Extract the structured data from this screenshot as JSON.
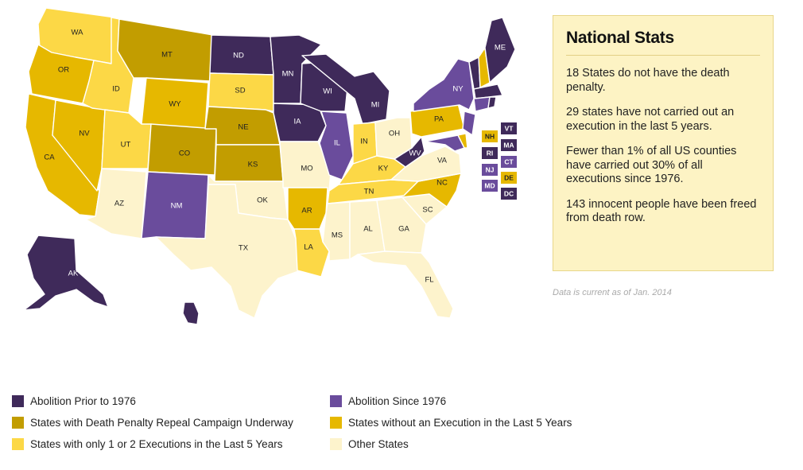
{
  "colors": {
    "abolition_prior": "#3f2a5a",
    "abolition_since": "#6a4c9c",
    "repeal_campaign": "#c29d00",
    "no_execution_5yrs": "#e6b800",
    "one_two_executions": "#fcd846",
    "other": "#fdf3cc",
    "box_olive": "#c9a21b",
    "box_purple": "#4a3171"
  },
  "states": [
    {
      "abbr": "WA",
      "category": "one_two_executions"
    },
    {
      "abbr": "OR",
      "category": "no_execution_5yrs"
    },
    {
      "abbr": "CA",
      "category": "no_execution_5yrs"
    },
    {
      "abbr": "NV",
      "category": "no_execution_5yrs"
    },
    {
      "abbr": "ID",
      "category": "one_two_executions"
    },
    {
      "abbr": "MT",
      "category": "repeal_campaign"
    },
    {
      "abbr": "WY",
      "category": "no_execution_5yrs"
    },
    {
      "abbr": "UT",
      "category": "one_two_executions"
    },
    {
      "abbr": "CO",
      "category": "repeal_campaign"
    },
    {
      "abbr": "AZ",
      "category": "other"
    },
    {
      "abbr": "NM",
      "category": "abolition_since"
    },
    {
      "abbr": "ND",
      "category": "abolition_prior"
    },
    {
      "abbr": "SD",
      "category": "one_two_executions"
    },
    {
      "abbr": "NE",
      "category": "repeal_campaign"
    },
    {
      "abbr": "KS",
      "category": "repeal_campaign"
    },
    {
      "abbr": "OK",
      "category": "other"
    },
    {
      "abbr": "TX",
      "category": "other"
    },
    {
      "abbr": "MN",
      "category": "abolition_prior"
    },
    {
      "abbr": "IA",
      "category": "abolition_prior"
    },
    {
      "abbr": "MO",
      "category": "other"
    },
    {
      "abbr": "AR",
      "category": "no_execution_5yrs"
    },
    {
      "abbr": "LA",
      "category": "one_two_executions"
    },
    {
      "abbr": "WI",
      "category": "abolition_prior"
    },
    {
      "abbr": "IL",
      "category": "abolition_since"
    },
    {
      "abbr": "MI",
      "category": "abolition_prior"
    },
    {
      "abbr": "IN",
      "category": "one_two_executions"
    },
    {
      "abbr": "OH",
      "category": "other"
    },
    {
      "abbr": "KY",
      "category": "one_two_executions"
    },
    {
      "abbr": "TN",
      "category": "one_two_executions"
    },
    {
      "abbr": "MS",
      "category": "other"
    },
    {
      "abbr": "AL",
      "category": "other"
    },
    {
      "abbr": "GA",
      "category": "other"
    },
    {
      "abbr": "FL",
      "category": "other"
    },
    {
      "abbr": "SC",
      "category": "other"
    },
    {
      "abbr": "NC",
      "category": "no_execution_5yrs"
    },
    {
      "abbr": "VA",
      "category": "other"
    },
    {
      "abbr": "WV",
      "category": "abolition_prior"
    },
    {
      "abbr": "PA",
      "category": "no_execution_5yrs"
    },
    {
      "abbr": "NY",
      "category": "abolition_since"
    },
    {
      "abbr": "ME",
      "category": "abolition_prior"
    },
    {
      "abbr": "AK",
      "category": "abolition_prior"
    },
    {
      "abbr": "HI",
      "category": "abolition_prior"
    }
  ],
  "small_state_boxes": [
    {
      "abbr": "NH",
      "category": "no_execution_5yrs"
    },
    {
      "abbr": "VT",
      "category": "abolition_prior"
    },
    {
      "abbr": "MA",
      "category": "abolition_prior"
    },
    {
      "abbr": "RI",
      "category": "abolition_prior"
    },
    {
      "abbr": "CT",
      "category": "abolition_since"
    },
    {
      "abbr": "NJ",
      "category": "abolition_since"
    },
    {
      "abbr": "DE",
      "category": "no_execution_5yrs"
    },
    {
      "abbr": "MD",
      "category": "abolition_since"
    },
    {
      "abbr": "DC",
      "category": "abolition_prior"
    }
  ],
  "stats": {
    "title": "National Stats",
    "facts": [
      "18 States do not have the death penalty.",
      "29 states have not carried out an execution in the last 5 years.",
      "Fewer than 1% of all US counties have carried out 30% of all executions since 1976.",
      "143 innocent people have been freed from death row."
    ]
  },
  "note": "Data is current as of Jan. 2014",
  "legend": [
    {
      "label": "Abolition Prior to 1976",
      "category": "abolition_prior"
    },
    {
      "label": "Abolition Since 1976",
      "category": "abolition_since"
    },
    {
      "label": "States with Death Penalty Repeal Campaign Underway",
      "category": "repeal_campaign"
    },
    {
      "label": "States without an Execution in the Last 5 Years",
      "category": "no_execution_5yrs"
    },
    {
      "label": "States with only 1 or 2 Executions in the Last 5 Years",
      "category": "one_two_executions"
    },
    {
      "label": "Other States",
      "category": "other"
    }
  ]
}
